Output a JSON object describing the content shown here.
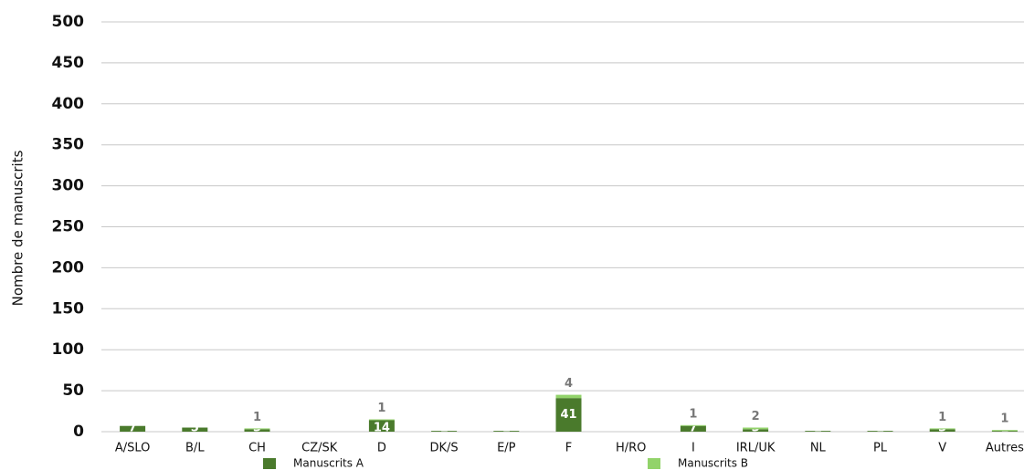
{
  "chart_data": {
    "type": "stacked_bar",
    "y_label": "Nombre de manuscrits",
    "categories": [
      "A/SLO",
      "B/L",
      "CH",
      "CZ/SK",
      "D",
      "DK/S",
      "E/P",
      "F",
      "H/RO",
      "I",
      "IRL/UK",
      "NL",
      "PL",
      "V",
      "Autres"
    ],
    "series": [
      {
        "name": "Manuscrits A",
        "color": "#4a7a2c",
        "values": [
          7,
          5,
          3,
          null,
          14,
          1,
          1,
          41,
          null,
          7,
          3,
          1,
          1,
          3,
          1
        ]
      },
      {
        "name": "Manuscrits B",
        "color": "#92d36a",
        "values": [
          null,
          null,
          1,
          null,
          1,
          null,
          null,
          4,
          null,
          1,
          2,
          null,
          null,
          1,
          1
        ]
      }
    ],
    "ylim": [
      0,
      500
    ],
    "yticks": [
      0,
      50,
      100,
      150,
      200,
      250,
      300,
      350,
      400,
      450,
      500
    ],
    "grid": true
  }
}
